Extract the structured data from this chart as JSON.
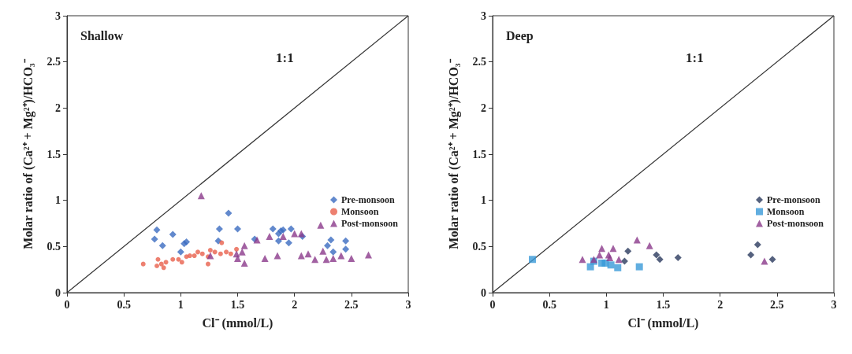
{
  "chart_data": [
    {
      "type": "scatter",
      "title": "Shallow",
      "xlabel": "Cl⁻ (mmol/L)",
      "ylabel": "Molar ratio of (Ca²⁺ + Mg²⁺)/HCO₃⁻",
      "xlim": [
        0,
        3
      ],
      "ylim": [
        0,
        3
      ],
      "xticks": [
        0,
        0.5,
        1,
        1.5,
        2,
        2.5,
        3
      ],
      "yticks": [
        0,
        0.5,
        1,
        1.5,
        2,
        2.5,
        3
      ],
      "grid": false,
      "legend": "right",
      "annotations": [
        "1:1"
      ],
      "series": [
        {
          "name": "Pre-monsoon",
          "color": "#3b6cc0",
          "marker": "diamond",
          "x": [
            0.79,
            0.77,
            0.84,
            0.93,
            1.03,
            1.05,
            1.0,
            1.34,
            1.33,
            1.42,
            1.5,
            1.65,
            1.81,
            1.86,
            1.88,
            1.9,
            1.86,
            1.95,
            1.97,
            2.07,
            2.29,
            2.34,
            2.45,
            2.45,
            2.32
          ],
          "values": [
            0.68,
            0.58,
            0.51,
            0.63,
            0.53,
            0.55,
            0.44,
            0.69,
            0.56,
            0.86,
            0.69,
            0.58,
            0.69,
            0.64,
            0.67,
            0.68,
            0.56,
            0.54,
            0.69,
            0.61,
            0.51,
            0.44,
            0.56,
            0.47,
            0.57
          ]
        },
        {
          "name": "Monsoon",
          "color": "#e8604c",
          "marker": "circle",
          "x": [
            0.67,
            0.8,
            0.79,
            0.83,
            0.85,
            0.87,
            0.93,
            0.98,
            1.01,
            1.05,
            1.08,
            1.12,
            1.15,
            1.19,
            1.24,
            1.26,
            1.3,
            1.35,
            1.4,
            1.44,
            1.49,
            1.24,
            1.36
          ],
          "values": [
            0.31,
            0.36,
            0.29,
            0.31,
            0.27,
            0.33,
            0.36,
            0.36,
            0.33,
            0.39,
            0.4,
            0.4,
            0.44,
            0.42,
            0.39,
            0.46,
            0.44,
            0.42,
            0.44,
            0.42,
            0.47,
            0.31,
            0.54
          ]
        },
        {
          "name": "Post-monsoon",
          "color": "#8b3a8b",
          "marker": "triangle",
          "x": [
            1.18,
            1.26,
            1.49,
            1.54,
            1.56,
            1.56,
            1.5,
            1.67,
            1.78,
            1.9,
            2.0,
            2.06,
            2.12,
            2.18,
            2.25,
            2.23,
            2.28,
            2.41,
            2.5,
            2.65,
            1.74,
            1.85,
            2.06,
            2.34
          ],
          "values": [
            1.05,
            0.4,
            0.42,
            0.44,
            0.51,
            0.32,
            0.37,
            0.57,
            0.61,
            0.61,
            0.64,
            0.64,
            0.42,
            0.36,
            0.45,
            0.73,
            0.36,
            0.4,
            0.37,
            0.41,
            0.37,
            0.4,
            0.4,
            0.37
          ]
        },
        {
          "type": "line",
          "color": "#333333",
          "marker": "none",
          "x": [
            0,
            3
          ],
          "values": [
            0,
            3
          ]
        }
      ]
    },
    {
      "type": "scatter",
      "title": "Deep",
      "xlabel": "Cl⁻ (mmol/L)",
      "ylabel": "Molar ratio of (Ca²⁺ + Mg²⁺)/HCO₃⁻",
      "xlim": [
        0,
        3
      ],
      "ylim": [
        0,
        3
      ],
      "xticks": [
        0,
        0.5,
        1,
        1.5,
        2,
        2.5,
        3
      ],
      "yticks": [
        0,
        0.5,
        1,
        1.5,
        2,
        2.5,
        3
      ],
      "grid": false,
      "legend": "right",
      "annotations": [
        "1:1"
      ],
      "series": [
        {
          "name": "Pre-monsoon",
          "color": "#2b3a5e",
          "marker": "diamond",
          "x": [
            1.19,
            1.16,
            1.44,
            1.47,
            1.63,
            2.33,
            2.27,
            2.46
          ],
          "values": [
            0.45,
            0.34,
            0.41,
            0.36,
            0.38,
            0.52,
            0.41,
            0.36
          ]
        },
        {
          "name": "Monsoon",
          "color": "#3a9ad8",
          "marker": "square",
          "x": [
            0.35,
            0.86,
            0.96,
            0.99,
            1.04,
            1.1,
            1.29,
            0.89
          ],
          "values": [
            0.36,
            0.28,
            0.32,
            0.32,
            0.3,
            0.27,
            0.28,
            0.34
          ]
        },
        {
          "name": "Post-monsoon",
          "color": "#8b3a8b",
          "marker": "triangle",
          "x": [
            0.79,
            0.89,
            0.96,
            1.06,
            0.94,
            1.03,
            1.11,
            1.27,
            1.38,
            1.02,
            2.39
          ],
          "values": [
            0.36,
            0.36,
            0.48,
            0.48,
            0.41,
            0.38,
            0.36,
            0.57,
            0.51,
            0.41,
            0.34
          ]
        },
        {
          "type": "line",
          "color": "#333333",
          "marker": "none",
          "x": [
            0,
            3
          ],
          "values": [
            0,
            3
          ]
        }
      ]
    }
  ]
}
